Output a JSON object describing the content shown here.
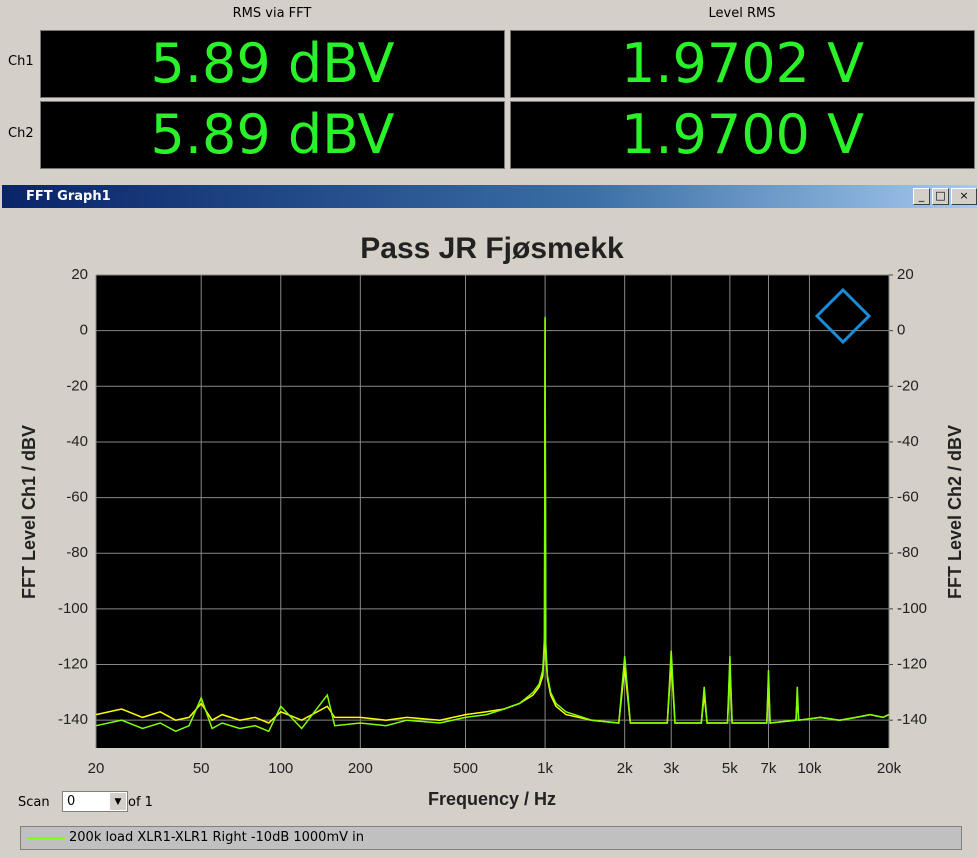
{
  "readouts": {
    "headers": [
      "RMS via FFT",
      "Level RMS"
    ],
    "rows": [
      {
        "label": "Ch1",
        "values": [
          "5.89 dBV",
          "1.9702 V"
        ]
      },
      {
        "label": "Ch2",
        "values": [
          "5.89 dBV",
          "1.9700 V"
        ]
      }
    ]
  },
  "window": {
    "title": "FFT Graph1"
  },
  "scan": {
    "label": "Scan",
    "value": "0",
    "of": "of 1"
  },
  "chart_data": {
    "type": "line",
    "title": "Pass JR Fjøsmekk",
    "x_label": "Frequency / Hz",
    "y_label": "FFT Level Ch1 / dBV",
    "y2_label": "FFT Level Ch2 / dBV",
    "log_x": true,
    "grid": true,
    "xlim": [
      20,
      20000
    ],
    "xticks": [
      20,
      50,
      100,
      200,
      500,
      {
        "value": 1000,
        "label": "1k"
      },
      {
        "value": 2000,
        "label": "2k"
      },
      {
        "value": 3000,
        "label": "3k"
      },
      {
        "value": 5000,
        "label": "5k"
      },
      {
        "value": 7000,
        "label": "7k"
      },
      {
        "value": 10000,
        "label": "10k"
      },
      {
        "value": 20000,
        "label": "20k"
      }
    ],
    "ylim": [
      -150,
      20
    ],
    "yticks": [
      20,
      0,
      -20,
      -40,
      -60,
      -80,
      -100,
      -120,
      -140
    ],
    "y2lim": [
      -150,
      20
    ],
    "y2ticks": [
      20,
      0,
      -20,
      -40,
      -60,
      -80,
      -100,
      -120,
      -140
    ],
    "x": [
      20,
      25,
      30,
      35,
      40,
      45,
      50,
      55,
      60,
      70,
      80,
      90,
      100,
      120,
      150,
      160,
      200,
      250,
      300,
      400,
      500,
      600,
      700,
      800,
      900,
      950,
      980,
      995,
      1000,
      1005,
      1020,
      1050,
      1100,
      1200,
      1500,
      1900,
      2000,
      2100,
      2900,
      3000,
      3100,
      3900,
      4000,
      4100,
      4900,
      5000,
      5100,
      6900,
      7000,
      7100,
      8900,
      9000,
      9100,
      11000,
      13000,
      15000,
      17000,
      19000,
      20000
    ],
    "series": [
      {
        "color": "#ffff00",
        "axis": "y2",
        "values": [
          -138,
          -136,
          -139,
          -137,
          -140,
          -139,
          -134,
          -140,
          -138,
          -140,
          -139,
          -141,
          -137,
          -140,
          -135,
          -139,
          -139,
          -140,
          -139,
          -140,
          -138,
          -137,
          -136,
          -134,
          -131,
          -128,
          -124,
          -113,
          4,
          -115,
          -125,
          -131,
          -135,
          -138,
          -140,
          -141,
          -121,
          -141,
          -141,
          -119,
          -141,
          -141,
          -131,
          -141,
          -141,
          -121,
          -141,
          -141,
          -126,
          -141,
          -140,
          -131,
          -140,
          -139,
          -140,
          -139,
          -138,
          -139,
          -138
        ]
      },
      {
        "name": "200k load XLR1-XLR1 Right  -10dB 1000mV in",
        "color": "#80ff00",
        "values": [
          -142,
          -140,
          -143,
          -141,
          -144,
          -142,
          -132,
          -143,
          -141,
          -143,
          -142,
          -144,
          -135,
          -143,
          -131,
          -142,
          -141,
          -142,
          -140,
          -141,
          -139,
          -138,
          -136,
          -134,
          -130,
          -127,
          -122,
          -110,
          5,
          -112,
          -124,
          -130,
          -134,
          -137,
          -140,
          -141,
          -117,
          -141,
          -141,
          -115,
          -141,
          -141,
          -128,
          -141,
          -141,
          -117,
          -141,
          -141,
          -122,
          -141,
          -140,
          -128,
          -140,
          -139,
          -140,
          -139,
          -138,
          -139,
          -138
        ]
      }
    ]
  }
}
